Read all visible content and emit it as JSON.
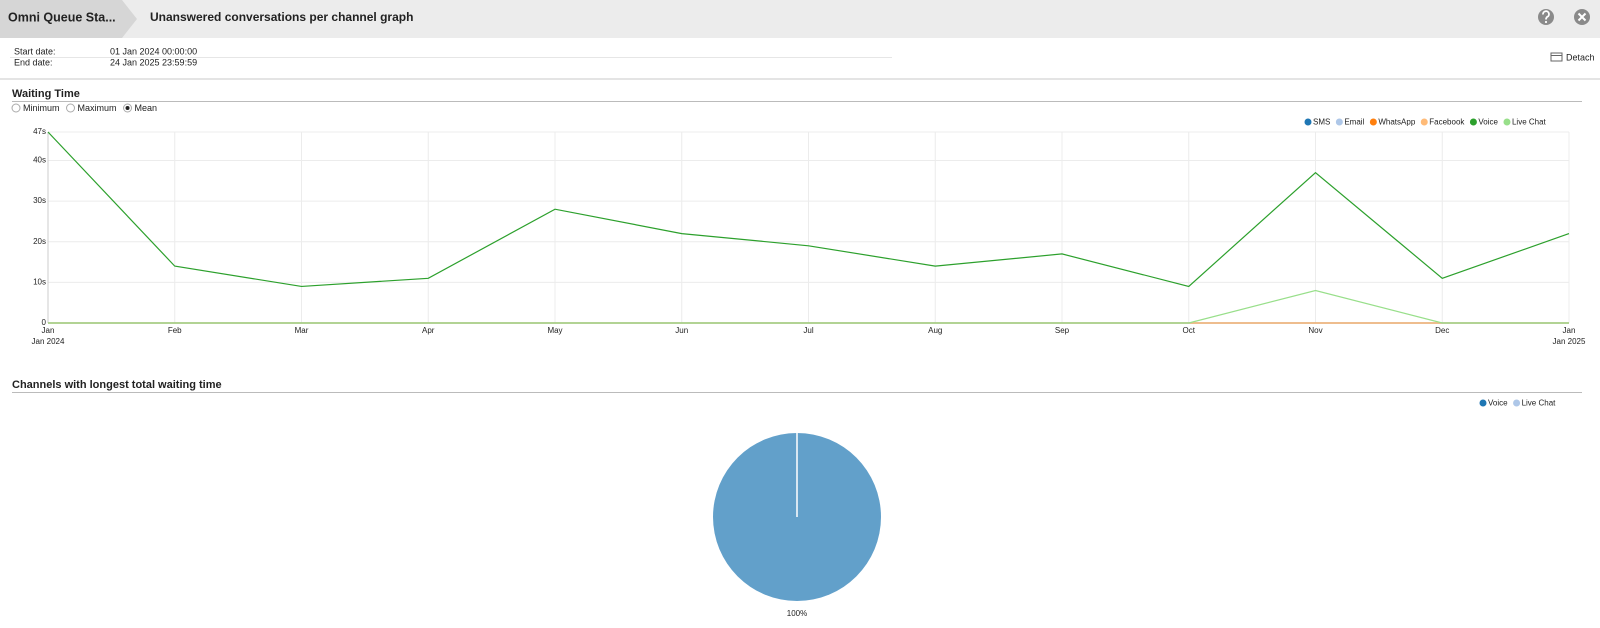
{
  "header": {
    "breadcrumb": "Omni Queue Sta...",
    "title": "Unanswered conversations per channel graph"
  },
  "dates": {
    "start_label": "Start date:",
    "start_value": "01 Jan 2024 00:00:00",
    "end_label": "End date:",
    "end_value": "24 Jan 2025 23:59:59"
  },
  "detach": "Detach",
  "statistic_selector": {
    "options": [
      "Minimum",
      "Maximum",
      "Mean"
    ],
    "selected": 2
  },
  "chart_data": [
    {
      "type": "line",
      "title": "Waiting Time",
      "categories": [
        "Jan",
        "Feb",
        "Mar",
        "Apr",
        "May",
        "Jun",
        "Jul",
        "Aug",
        "Sep",
        "Oct",
        "Nov",
        "Dec",
        "Jan"
      ],
      "year_labels": {
        "first": "Jan 2024",
        "last": "Jan 2025"
      },
      "ylim": [
        0,
        47
      ],
      "yticks": [
        0,
        {
          "value": 10,
          "label": "10s"
        },
        {
          "value": 20,
          "label": "20s"
        },
        {
          "value": 30,
          "label": "30s"
        },
        {
          "value": 40,
          "label": "40s"
        },
        {
          "value": 47,
          "label": "47s"
        }
      ],
      "grid": true,
      "series": [
        {
          "name": "SMS",
          "color": "#1f77b4",
          "values": [
            0,
            0,
            0,
            0,
            0,
            0,
            0,
            0,
            0,
            0,
            0,
            0,
            0
          ]
        },
        {
          "name": "Email",
          "color": "#aec7e8",
          "values": [
            0,
            0,
            0,
            0,
            0,
            0,
            0,
            0,
            0,
            0,
            0,
            0,
            0
          ]
        },
        {
          "name": "WhatsApp",
          "color": "#ff7f0e",
          "values": [
            0,
            0,
            0,
            0,
            0,
            0,
            0,
            0,
            0,
            0,
            0,
            0,
            0
          ]
        },
        {
          "name": "Facebook",
          "color": "#ffbb78",
          "values": [
            0,
            0,
            0,
            0,
            0,
            0,
            0,
            0,
            0,
            0,
            0,
            0,
            0
          ]
        },
        {
          "name": "Voice",
          "color": "#2ca02c",
          "values": [
            47,
            14,
            9,
            11,
            28,
            22,
            19,
            14,
            17,
            9,
            37,
            11,
            22
          ]
        },
        {
          "name": "Live Chat",
          "color": "#98df8a",
          "values": [
            0,
            0,
            0,
            0,
            0,
            0,
            0,
            0,
            0,
            0,
            8,
            0,
            0
          ]
        }
      ]
    },
    {
      "type": "pie",
      "title": "Channels with longest total waiting time",
      "categories": [
        "Voice",
        "Live Chat"
      ],
      "values": [
        100,
        0
      ],
      "value_labels": [
        "100%",
        null
      ],
      "colors": [
        "#1f77b4",
        "#aec7e8"
      ]
    }
  ]
}
